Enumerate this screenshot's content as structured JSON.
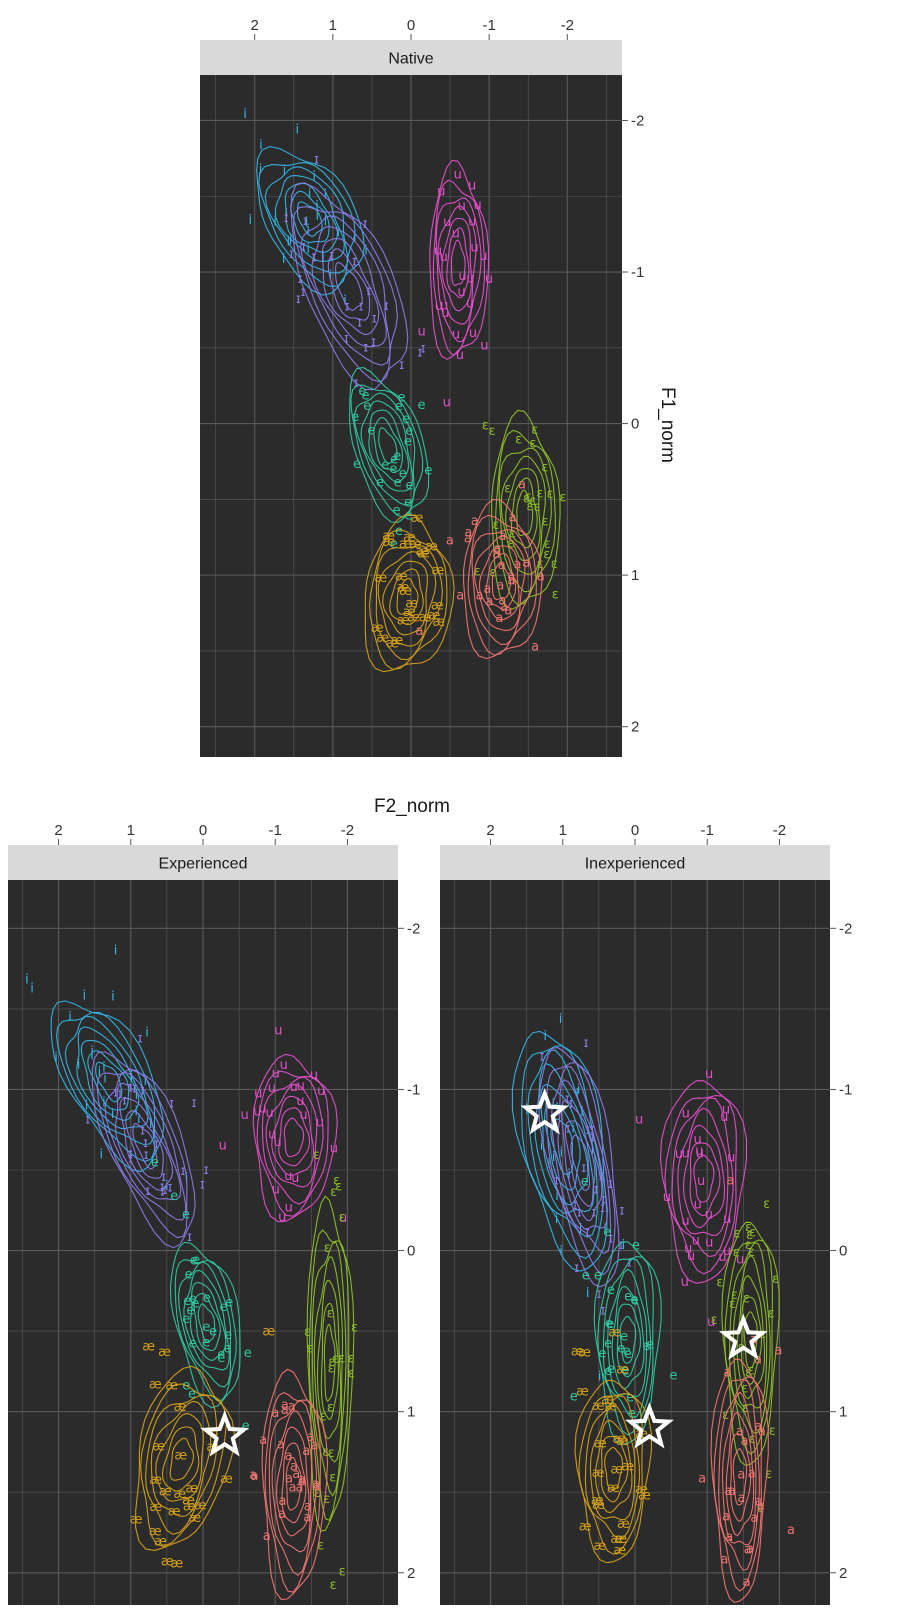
{
  "chart_data": {
    "type": "contour-scatter",
    "xlabel": "F2_norm",
    "ylabel": "F1_norm",
    "x_axis": {
      "reversed": true,
      "position": "top",
      "ticks": [
        2,
        1,
        0,
        -1,
        -2
      ],
      "range": [
        2.7,
        -2.7
      ]
    },
    "y_axis": {
      "reversed": true,
      "position": "right",
      "ticks": [
        -2,
        -1,
        0,
        1,
        2
      ],
      "range": [
        -2.3,
        2.2
      ]
    },
    "panel_background": "#2b2b2b",
    "grid_color": "#5a5a5a",
    "strip_background": "#d9d9d9",
    "markers": {
      "shape": "star",
      "color": "#ffffff"
    },
    "vowels": [
      {
        "label": "i",
        "color": "#33b5e5"
      },
      {
        "label": "ɪ",
        "color": "#8c7be8"
      },
      {
        "label": "u",
        "color": "#e64ecc"
      },
      {
        "label": "e",
        "color": "#2ec8a0"
      },
      {
        "label": "ɛ",
        "color": "#8cbf26"
      },
      {
        "label": "æ",
        "color": "#d4a017"
      },
      {
        "label": "a",
        "color": "#f07470"
      }
    ],
    "panels": [
      {
        "title": "Native",
        "clusters": {
          "i": {
            "center": [
              1.3,
              -1.35
            ],
            "spread": [
              0.45,
              0.4
            ],
            "tilt": -0.5
          },
          "ɪ": {
            "center": [
              0.8,
              -0.9
            ],
            "spread": [
              0.45,
              0.55
            ],
            "tilt": -0.4
          },
          "u": {
            "center": [
              -0.6,
              -1.05
            ],
            "spread": [
              0.3,
              0.5
            ],
            "tilt": 0
          },
          "e": {
            "center": [
              0.3,
              0.15
            ],
            "spread": [
              0.35,
              0.4
            ],
            "tilt": -0.3
          },
          "ɛ": {
            "center": [
              -1.45,
              0.6
            ],
            "spread": [
              0.35,
              0.5
            ],
            "tilt": 0
          },
          "æ": {
            "center": [
              0.05,
              1.15
            ],
            "spread": [
              0.45,
              0.4
            ],
            "tilt": 0.1
          },
          "a": {
            "center": [
              -1.15,
              1.05
            ],
            "spread": [
              0.4,
              0.4
            ],
            "tilt": 0
          }
        },
        "stars": []
      },
      {
        "title": "Experienced",
        "clusters": {
          "i": {
            "center": [
              1.3,
              -1.05
            ],
            "spread": [
              0.45,
              0.45
            ],
            "tilt": -0.5
          },
          "ɪ": {
            "center": [
              0.8,
              -0.65
            ],
            "spread": [
              0.4,
              0.5
            ],
            "tilt": -0.4
          },
          "u": {
            "center": [
              -1.25,
              -0.7
            ],
            "spread": [
              0.45,
              0.4
            ],
            "tilt": 0
          },
          "e": {
            "center": [
              -0.05,
              0.45
            ],
            "spread": [
              0.35,
              0.4
            ],
            "tilt": -0.2
          },
          "ɛ": {
            "center": [
              -1.75,
              0.7
            ],
            "spread": [
              0.25,
              0.8
            ],
            "tilt": 0
          },
          "æ": {
            "center": [
              0.3,
              1.3
            ],
            "spread": [
              0.5,
              0.45
            ],
            "tilt": 0.2
          },
          "a": {
            "center": [
              -1.25,
              1.45
            ],
            "spread": [
              0.35,
              0.55
            ],
            "tilt": 0
          }
        },
        "stars": [
          {
            "x": -0.3,
            "y": 1.15
          }
        ]
      },
      {
        "title": "Inexperienced",
        "clusters": {
          "i": {
            "center": [
              1.0,
              -0.65
            ],
            "spread": [
              0.45,
              0.6
            ],
            "tilt": -0.2
          },
          "ɪ": {
            "center": [
              0.75,
              -0.55
            ],
            "spread": [
              0.35,
              0.6
            ],
            "tilt": -0.2
          },
          "u": {
            "center": [
              -0.95,
              -0.45
            ],
            "spread": [
              0.45,
              0.5
            ],
            "tilt": 0
          },
          "e": {
            "center": [
              0.1,
              0.55
            ],
            "spread": [
              0.35,
              0.5
            ],
            "tilt": 0
          },
          "ɛ": {
            "center": [
              -1.6,
              0.55
            ],
            "spread": [
              0.3,
              0.6
            ],
            "tilt": 0
          },
          "æ": {
            "center": [
              0.3,
              1.35
            ],
            "spread": [
              0.4,
              0.45
            ],
            "tilt": 0
          },
          "a": {
            "center": [
              -1.45,
              1.4
            ],
            "spread": [
              0.3,
              0.6
            ],
            "tilt": 0
          }
        },
        "stars": [
          {
            "x": 1.25,
            "y": -0.85
          },
          {
            "x": -0.2,
            "y": 1.1
          },
          {
            "x": -1.5,
            "y": 0.55
          }
        ]
      }
    ]
  }
}
